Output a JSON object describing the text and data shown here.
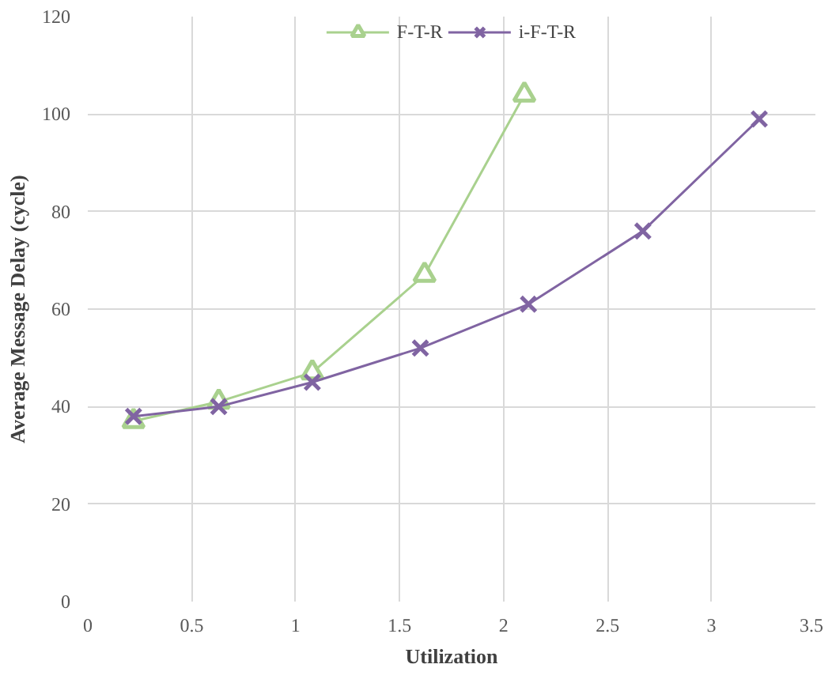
{
  "chart_data": {
    "type": "line",
    "xlabel": "Utilization",
    "ylabel": "Average Message Delay (cycle)",
    "xlim": [
      0,
      3.5
    ],
    "xticks": [
      0,
      0.5,
      1,
      1.5,
      2,
      2.5,
      3,
      3.5
    ],
    "ylim": [
      0,
      120
    ],
    "yticks": [
      0,
      20,
      40,
      60,
      80,
      100,
      120
    ],
    "grid": true,
    "legend": "top",
    "series": [
      {
        "name": "F-T-R",
        "color": "#a9d18e",
        "marker": "triangle",
        "x": [
          0.22,
          0.63,
          1.08,
          1.62,
          2.1
        ],
        "values": [
          37,
          41,
          47,
          67,
          104
        ]
      },
      {
        "name": "i-F-T-R",
        "color": "#8064a2",
        "marker": "cross",
        "x": [
          0.22,
          0.63,
          1.08,
          1.6,
          2.12,
          2.67,
          3.23
        ],
        "values": [
          38,
          40,
          45,
          52,
          61,
          76,
          99
        ]
      }
    ]
  }
}
